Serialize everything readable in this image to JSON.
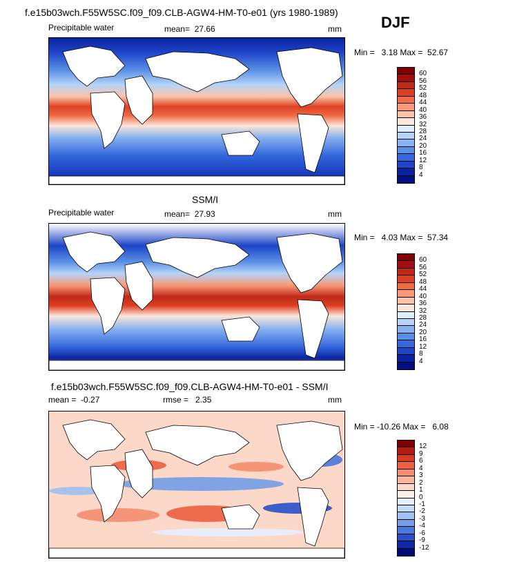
{
  "header": {
    "title": "f.e15b03wch.F55W5SC.f09_f09.CLB-AGW4-HM-T0-e01 (yrs 1980-1989)",
    "season": "DJF"
  },
  "panels": [
    {
      "id": "model",
      "field": "Precipitable water",
      "stat_left": "mean=  27.66",
      "stat_mid": "",
      "units": "mm",
      "minmax": "Min =   3.18 Max =  52.67",
      "colorbar": {
        "labels": [
          "60",
          "56",
          "52",
          "48",
          "44",
          "40",
          "36",
          "32",
          "28",
          "24",
          "20",
          "16",
          "12",
          "8",
          "4"
        ],
        "colors": [
          "#7f0000",
          "#a01010",
          "#c02818",
          "#de3f22",
          "#ef6a45",
          "#f89a78",
          "#fcc3a8",
          "#fde6da",
          "#dceeff",
          "#b5d4f8",
          "#86b2f0",
          "#5a8fe6",
          "#3468dc",
          "#1d45c8",
          "#0a22a0",
          "#001080"
        ]
      }
    },
    {
      "id": "obs",
      "title": "SSM/I",
      "field": "Precipitable water",
      "stat_left": "mean=  27.93",
      "stat_mid": "",
      "units": "mm",
      "minmax": "Min =   4.03 Max =  57.34",
      "colorbar": {
        "labels": [
          "60",
          "56",
          "52",
          "48",
          "44",
          "40",
          "36",
          "32",
          "28",
          "24",
          "20",
          "16",
          "12",
          "8",
          "4"
        ],
        "colors": [
          "#7f0000",
          "#a01010",
          "#c02818",
          "#de3f22",
          "#ef6a45",
          "#f89a78",
          "#fcc3a8",
          "#fde6da",
          "#dceeff",
          "#b5d4f8",
          "#86b2f0",
          "#5a8fe6",
          "#3468dc",
          "#1d45c8",
          "#0a22a0",
          "#001080"
        ]
      }
    },
    {
      "id": "diff",
      "title": "f.e15b03wch.F55W5SC.f09_f09.CLB-AGW4-HM-T0-e01 - SSM/I",
      "field": "",
      "stat_left": "mean =  -0.27",
      "stat_mid": "rmse =   2.35",
      "units": "mm",
      "minmax": "Min = -10.26 Max =   6.08",
      "colorbar": {
        "labels": [
          "12",
          "9",
          "6",
          "4",
          "3",
          "2",
          "1",
          "0",
          "-1",
          "-2",
          "-3",
          "-4",
          "-6",
          "-9",
          "-12"
        ],
        "colors": [
          "#7f0000",
          "#b31c10",
          "#d83a20",
          "#ee6040",
          "#f58d6e",
          "#f9b69c",
          "#fcd8c8",
          "#fdeee6",
          "#e4f0ff",
          "#c4dcf8",
          "#9fc0f0",
          "#739ee6",
          "#4a78dc",
          "#2a50c8",
          "#1028a0",
          "#000a78"
        ]
      }
    }
  ]
}
